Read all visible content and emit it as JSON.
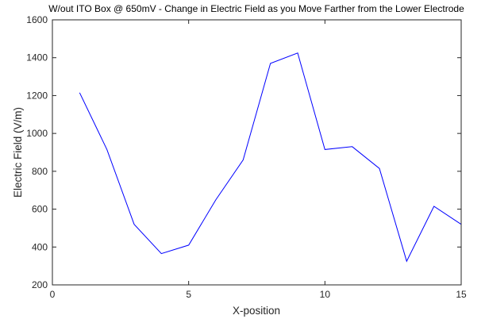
{
  "chart_data": {
    "type": "line",
    "title": "W/out ITO Box @ 650mV - Change in Electric Field as you Move Farther from the Lower Electrode",
    "xlabel": "X-position",
    "ylabel": "Electric Field (V/m)",
    "xlim": [
      0,
      15
    ],
    "ylim": [
      200,
      1600
    ],
    "xticks": [
      0,
      5,
      10,
      15
    ],
    "yticks": [
      200,
      400,
      600,
      800,
      1000,
      1200,
      1400,
      1600
    ],
    "grid": false,
    "series": [
      {
        "color": "#0000ff",
        "x": [
          1,
          2,
          3,
          4,
          5,
          6,
          7,
          8,
          9,
          10,
          11,
          12,
          13,
          14,
          15
        ],
        "y": [
          1215,
          915,
          520,
          365,
          410,
          650,
          860,
          1370,
          1425,
          915,
          930,
          815,
          325,
          615,
          520
        ]
      }
    ]
  }
}
